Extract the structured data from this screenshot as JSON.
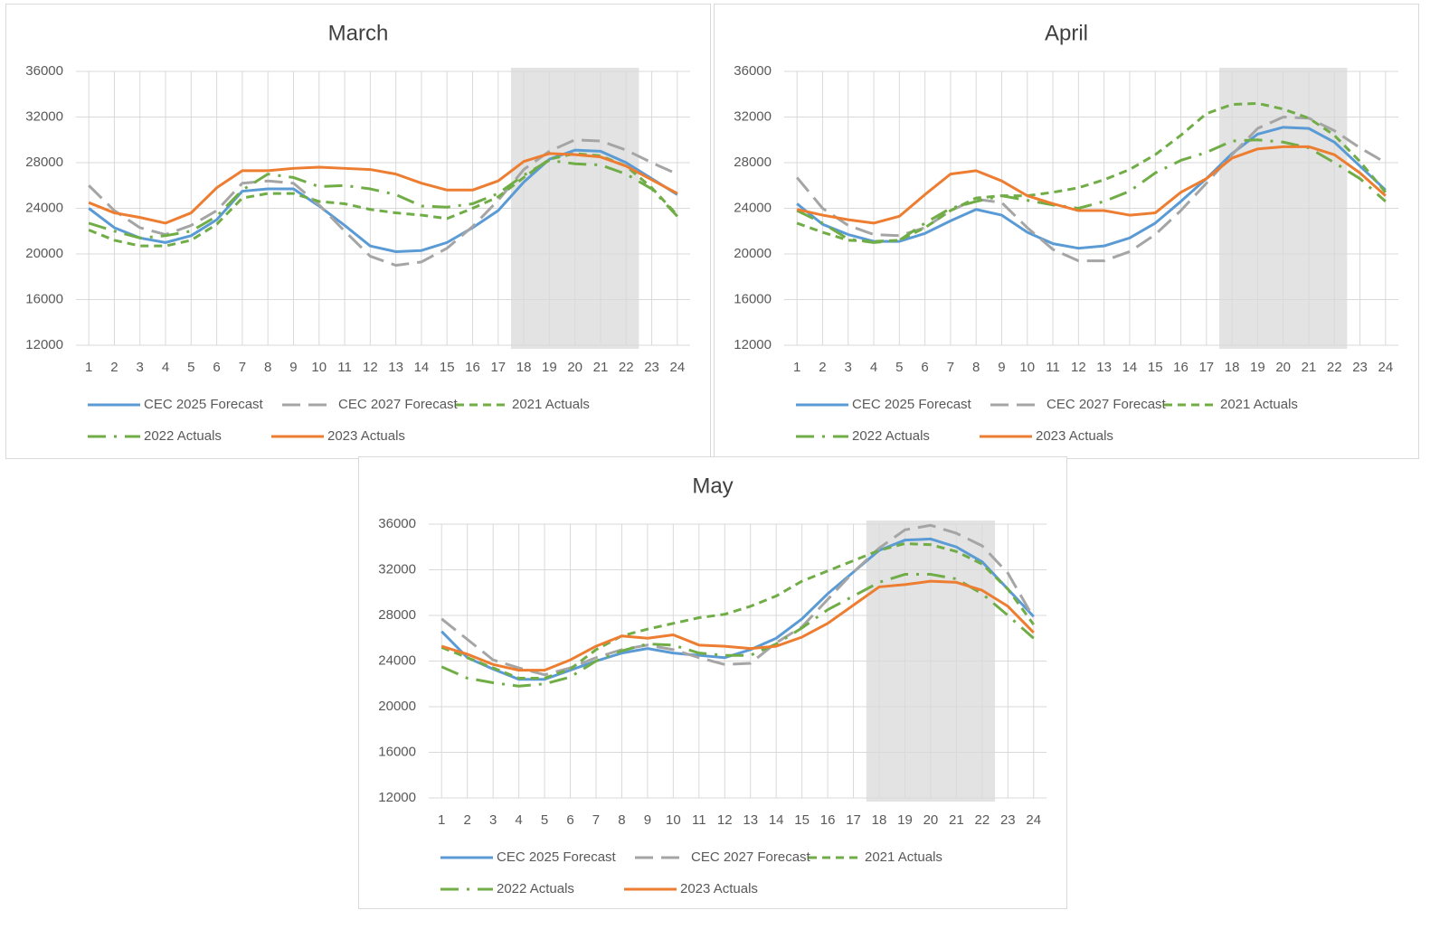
{
  "chart_data": [
    {
      "type": "line",
      "title": "March",
      "x": [
        1,
        2,
        3,
        4,
        5,
        6,
        7,
        8,
        9,
        10,
        11,
        12,
        13,
        14,
        15,
        16,
        17,
        18,
        19,
        20,
        21,
        22,
        23,
        24
      ],
      "xlim": [
        0.5,
        24.5
      ],
      "xticks": [
        1,
        2,
        3,
        4,
        5,
        6,
        7,
        8,
        9,
        10,
        11,
        12,
        13,
        14,
        15,
        16,
        17,
        18,
        19,
        20,
        21,
        22,
        23,
        24
      ],
      "ylim": [
        12000,
        36000
      ],
      "yticks": [
        12000,
        16000,
        20000,
        24000,
        28000,
        32000,
        36000
      ],
      "grid": true,
      "legend": "bottom",
      "shaded_range": [
        17.5,
        22.5
      ],
      "series": [
        {
          "name": "CEC 2025 Forecast",
          "color": "#5b9bd5",
          "dash": "solid",
          "values": [
            24000,
            22300,
            21400,
            21000,
            21600,
            23000,
            25500,
            25700,
            25700,
            24200,
            22500,
            20700,
            20200,
            20300,
            21000,
            22300,
            23800,
            26300,
            28300,
            29100,
            29000,
            28000,
            26600,
            25200
          ]
        },
        {
          "name": "CEC 2027 Forecast",
          "color": "#a5a5a5",
          "dash": "longDash",
          "values": [
            26000,
            23800,
            22300,
            21700,
            22500,
            23800,
            26200,
            26400,
            26200,
            24300,
            22000,
            19800,
            19000,
            19300,
            20500,
            22400,
            24700,
            27400,
            29000,
            30000,
            29900,
            29100,
            28000,
            27000
          ]
        },
        {
          "name": "2021 Actuals",
          "color": "#70ad47",
          "dash": "dash",
          "values": [
            22100,
            21200,
            20700,
            20700,
            21200,
            22600,
            24900,
            25300,
            25300,
            24600,
            24400,
            23900,
            23600,
            23400,
            23100,
            24000,
            25000,
            26700,
            28300,
            28800,
            28600,
            27700,
            25800,
            23400
          ]
        },
        {
          "name": "2022 Actuals",
          "color": "#70ad47",
          "dash": "longDashDot",
          "values": [
            22700,
            22000,
            21400,
            21600,
            22000,
            23300,
            25600,
            27000,
            26700,
            25900,
            26000,
            25700,
            25200,
            24200,
            24100,
            24400,
            25300,
            26900,
            28200,
            27900,
            27800,
            27000,
            25700,
            23300
          ]
        },
        {
          "name": "2023 Actuals",
          "color": "#ed7d31",
          "dash": "solid",
          "values": [
            24500,
            23600,
            23200,
            22700,
            23600,
            25800,
            27300,
            27300,
            27500,
            27600,
            27500,
            27400,
            27000,
            26200,
            25600,
            25600,
            26400,
            28100,
            28800,
            28700,
            28500,
            27700,
            26500,
            25300
          ]
        }
      ]
    },
    {
      "type": "line",
      "title": "April",
      "x": [
        1,
        2,
        3,
        4,
        5,
        6,
        7,
        8,
        9,
        10,
        11,
        12,
        13,
        14,
        15,
        16,
        17,
        18,
        19,
        20,
        21,
        22,
        23,
        24
      ],
      "xlim": [
        0.5,
        24.5
      ],
      "xticks": [
        1,
        2,
        3,
        4,
        5,
        6,
        7,
        8,
        9,
        10,
        11,
        12,
        13,
        14,
        15,
        16,
        17,
        18,
        19,
        20,
        21,
        22,
        23,
        24
      ],
      "ylim": [
        12000,
        36000
      ],
      "yticks": [
        12000,
        16000,
        20000,
        24000,
        28000,
        32000,
        36000
      ],
      "grid": true,
      "legend": "bottom",
      "shaded_range": [
        17.5,
        22.5
      ],
      "series": [
        {
          "name": "CEC 2025 Forecast",
          "color": "#5b9bd5",
          "dash": "solid",
          "values": [
            24400,
            22600,
            21700,
            21100,
            21100,
            21800,
            22900,
            23900,
            23400,
            21900,
            20900,
            20500,
            20700,
            21400,
            22700,
            24600,
            26600,
            28800,
            30500,
            31100,
            31000,
            29800,
            27700,
            25600
          ]
        },
        {
          "name": "CEC 2027 Forecast",
          "color": "#a5a5a5",
          "dash": "longDash",
          "values": [
            26700,
            24000,
            22500,
            21700,
            21600,
            22300,
            23800,
            24800,
            24500,
            22300,
            20400,
            19400,
            19400,
            20200,
            21700,
            23800,
            26200,
            28700,
            31000,
            32000,
            31900,
            30800,
            29300,
            28000
          ]
        },
        {
          "name": "2021 Actuals",
          "color": "#70ad47",
          "dash": "dash",
          "values": [
            22700,
            21900,
            21200,
            21100,
            21200,
            22300,
            23800,
            24900,
            25100,
            25100,
            25400,
            25800,
            26500,
            27400,
            28700,
            30400,
            32300,
            33100,
            33200,
            32700,
            31900,
            30400,
            28100,
            25400
          ]
        },
        {
          "name": "2022 Actuals",
          "color": "#70ad47",
          "dash": "longDashDot",
          "values": [
            23800,
            22700,
            21300,
            21000,
            21200,
            22700,
            24000,
            24600,
            25100,
            24700,
            24300,
            24000,
            24600,
            25500,
            27100,
            28200,
            28900,
            29900,
            30000,
            29800,
            29300,
            28000,
            26600,
            24600
          ]
        },
        {
          "name": "2023 Actuals",
          "color": "#ed7d31",
          "dash": "solid",
          "values": [
            23900,
            23400,
            23000,
            22700,
            23300,
            25200,
            27000,
            27300,
            26400,
            25100,
            24400,
            23800,
            23800,
            23400,
            23600,
            25400,
            26600,
            28400,
            29200,
            29400,
            29400,
            28700,
            27100,
            25100
          ]
        }
      ]
    },
    {
      "type": "line",
      "title": "May",
      "x": [
        1,
        2,
        3,
        4,
        5,
        6,
        7,
        8,
        9,
        10,
        11,
        12,
        13,
        14,
        15,
        16,
        17,
        18,
        19,
        20,
        21,
        22,
        23,
        24
      ],
      "xlim": [
        0.5,
        24.5
      ],
      "xticks": [
        1,
        2,
        3,
        4,
        5,
        6,
        7,
        8,
        9,
        10,
        11,
        12,
        13,
        14,
        15,
        16,
        17,
        18,
        19,
        20,
        21,
        22,
        23,
        24
      ],
      "ylim": [
        12000,
        36000
      ],
      "yticks": [
        12000,
        16000,
        20000,
        24000,
        28000,
        32000,
        36000
      ],
      "grid": true,
      "legend": "bottom",
      "shaded_range": [
        17.5,
        22.5
      ],
      "series": [
        {
          "name": "CEC 2025 Forecast",
          "color": "#5b9bd5",
          "dash": "solid",
          "values": [
            26600,
            24300,
            23300,
            22400,
            22400,
            23200,
            24000,
            24700,
            25100,
            24700,
            24500,
            24300,
            25000,
            26000,
            27700,
            29900,
            31800,
            33700,
            34600,
            34700,
            34000,
            32700,
            30300,
            27900
          ]
        },
        {
          "name": "CEC 2027 Forecast",
          "color": "#a5a5a5",
          "dash": "longDash",
          "values": [
            27700,
            25900,
            24100,
            23400,
            22800,
            23400,
            24300,
            25000,
            25400,
            25000,
            24300,
            23700,
            23800,
            25600,
            27000,
            29400,
            31800,
            33900,
            35500,
            35900,
            35200,
            34100,
            31700,
            27800
          ]
        },
        {
          "name": "2021 Actuals",
          "color": "#70ad47",
          "dash": "dash",
          "values": [
            25200,
            24300,
            23400,
            22500,
            22500,
            23300,
            25000,
            26200,
            26800,
            27300,
            27800,
            28100,
            28800,
            29700,
            31000,
            31900,
            32800,
            33700,
            34300,
            34200,
            33600,
            32500,
            30300,
            27200
          ]
        },
        {
          "name": "2022 Actuals",
          "color": "#70ad47",
          "dash": "longDashDot",
          "values": [
            23500,
            22500,
            22100,
            21800,
            22000,
            22600,
            24000,
            24900,
            25500,
            25400,
            24700,
            24500,
            24500,
            25500,
            26900,
            28500,
            29700,
            30900,
            31600,
            31600,
            31200,
            29900,
            28000,
            26000
          ]
        },
        {
          "name": "2023 Actuals",
          "color": "#ed7d31",
          "dash": "solid",
          "values": [
            25300,
            24600,
            23700,
            23200,
            23200,
            24100,
            25300,
            26200,
            26000,
            26300,
            25400,
            25300,
            25100,
            25300,
            26100,
            27300,
            28900,
            30500,
            30700,
            31000,
            30900,
            30200,
            28800,
            26500
          ]
        }
      ]
    }
  ]
}
